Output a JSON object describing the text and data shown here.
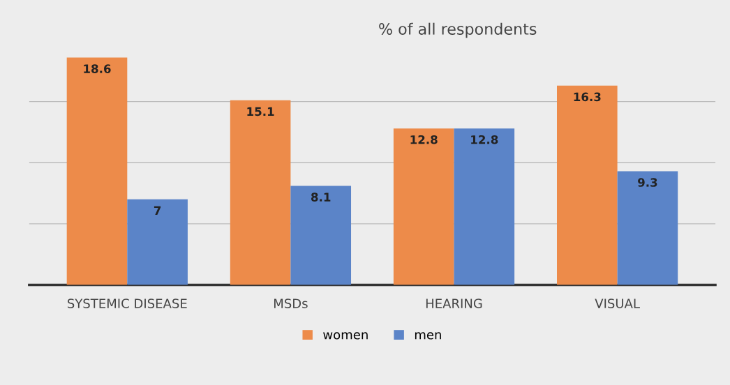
{
  "chart_data": {
    "type": "bar",
    "title": "% of all respondents",
    "categories": [
      "SYSTEMIC DISEASE",
      "MSDs",
      "HEARING",
      "VISUAL"
    ],
    "series": [
      {
        "name": "women",
        "color": "#ed8b4a",
        "values": [
          18.6,
          15.1,
          12.8,
          16.3
        ]
      },
      {
        "name": "men",
        "color": "#5b84c8",
        "values": [
          7,
          8.1,
          12.8,
          9.3
        ]
      }
    ],
    "yticks": [
      {
        "value": 0,
        "label": null
      },
      {
        "value": 5,
        "label": null
      },
      {
        "value": 10,
        "label": null
      },
      {
        "value": 15,
        "label": null
      }
    ],
    "tick_labels": "x",
    "grid": "y",
    "legend": "bottom",
    "data_labels": true
  }
}
